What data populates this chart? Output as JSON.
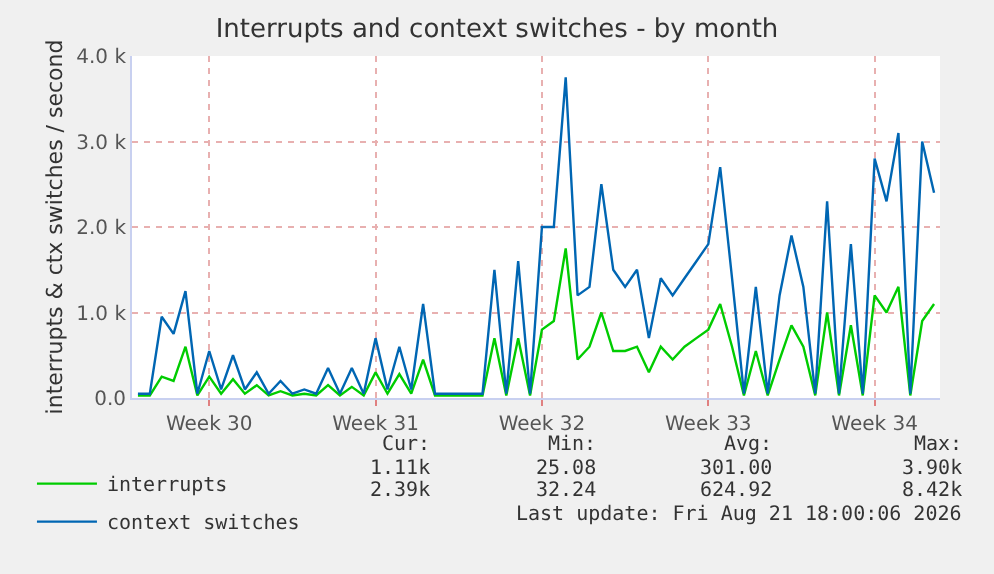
{
  "chart_data": {
    "type": "line",
    "title": "Interrupts and context switches - by month",
    "ylabel": "interrupts & ctx switches / second",
    "categories": [
      null,
      null,
      null,
      null,
      null,
      null,
      "Week 30",
      null,
      null,
      null,
      null,
      null,
      null,
      null,
      null,
      null,
      null,
      null,
      null,
      null,
      "Week 31",
      null,
      null,
      null,
      null,
      null,
      null,
      null,
      null,
      null,
      null,
      null,
      null,
      null,
      "Week 32",
      null,
      null,
      null,
      null,
      null,
      null,
      null,
      null,
      null,
      null,
      null,
      null,
      null,
      "Week 33",
      null,
      null,
      null,
      null,
      null,
      null,
      null,
      null,
      null,
      null,
      null,
      null,
      null,
      "Week 34",
      null,
      null,
      null,
      null,
      null
    ],
    "series": [
      {
        "name": "interrupts",
        "color": "#00cc00",
        "values": [
          30,
          30,
          250,
          200,
          600,
          30,
          250,
          50,
          220,
          50,
          150,
          30,
          80,
          30,
          50,
          30,
          150,
          30,
          130,
          30,
          300,
          50,
          280,
          50,
          450,
          30,
          30,
          30,
          30,
          30,
          700,
          30,
          700,
          30,
          800,
          900,
          1750,
          450,
          600,
          1000,
          550,
          550,
          600,
          300,
          600,
          450,
          600,
          700,
          800,
          1100,
          600,
          30,
          550,
          30,
          450,
          850,
          600,
          30,
          1000,
          30,
          850,
          30,
          1200,
          1000,
          1300,
          30,
          900,
          1100
        ]
      },
      {
        "name": "context switches",
        "color": "#0066b3",
        "values": [
          50,
          50,
          950,
          750,
          1250,
          50,
          550,
          100,
          500,
          100,
          300,
          50,
          200,
          50,
          100,
          50,
          350,
          50,
          350,
          50,
          700,
          100,
          600,
          100,
          1100,
          50,
          50,
          50,
          50,
          50,
          1500,
          50,
          1600,
          50,
          2000,
          2000,
          3750,
          1200,
          1300,
          2500,
          1500,
          1300,
          1500,
          700,
          1400,
          1200,
          1400,
          1600,
          1800,
          2700,
          1400,
          50,
          1300,
          50,
          1200,
          1900,
          1300,
          50,
          2300,
          50,
          1800,
          50,
          2800,
          2300,
          3100,
          50,
          3000,
          2400
        ]
      }
    ],
    "ylim": [
      0,
      4000
    ],
    "yticks": [
      {
        "value": 0,
        "label": "0.0"
      },
      {
        "value": 1000,
        "label": "1.0 k"
      },
      {
        "value": 2000,
        "label": "2.0 k"
      },
      {
        "value": 3000,
        "label": "3.0 k"
      },
      {
        "value": 4000,
        "label": "4.0 k"
      }
    ],
    "grid": true,
    "legend": "bottom left",
    "annotations": [
      "Cur:",
      "Min:",
      "Avg:",
      "Max:",
      "1.11k",
      "25.08",
      "301.00",
      "3.90k",
      "2.39k",
      "32.24",
      "624.92",
      "8.42k",
      "Last update: Fri Aug 21 18:00:06 2026"
    ]
  }
}
